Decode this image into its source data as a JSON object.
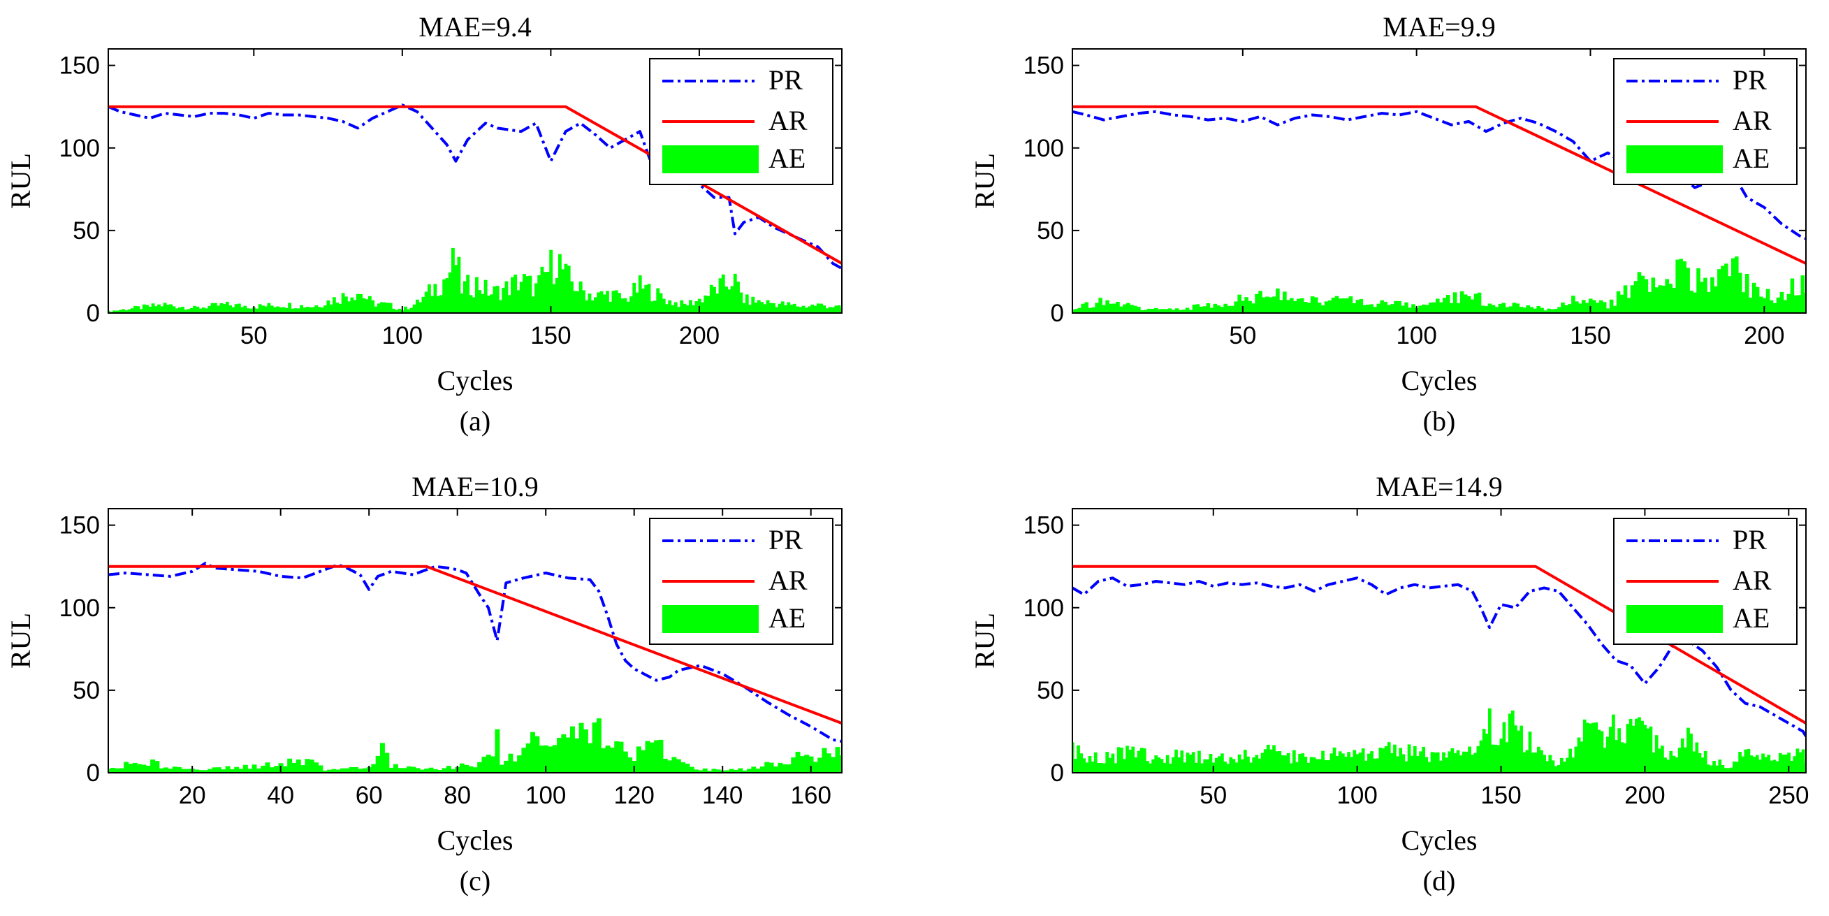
{
  "colors": {
    "predicted": "#0000ff",
    "actual": "#ff0000",
    "error": "#00ff00",
    "axis": "#000000",
    "background": "#ffffff"
  },
  "chart_data": [
    {
      "type": "line",
      "panel": "(a)",
      "title": "MAE=9.4",
      "xlabel": "Cycles",
      "ylabel": "RUL",
      "xlim": [
        1,
        248
      ],
      "ylim": [
        0,
        160
      ],
      "xticks": [
        50,
        100,
        150,
        200
      ],
      "yticks": [
        0,
        50,
        100,
        150
      ],
      "legend": [
        "PR",
        "AR",
        "AE"
      ],
      "series": [
        {
          "name": "PR",
          "style": "dash-dot",
          "x": [
            1,
            5,
            10,
            15,
            20,
            25,
            30,
            35,
            40,
            45,
            50,
            55,
            60,
            65,
            70,
            75,
            80,
            85,
            90,
            95,
            100,
            105,
            110,
            115,
            118,
            122,
            128,
            132,
            140,
            145,
            150,
            155,
            160,
            165,
            170,
            175,
            180,
            185,
            190,
            195,
            200,
            205,
            210,
            212,
            215,
            220,
            225,
            230,
            235,
            240,
            245,
            248
          ],
          "y": [
            125,
            122,
            120,
            118,
            121,
            120,
            119,
            121,
            121,
            120,
            118,
            121,
            120,
            120,
            119,
            118,
            116,
            112,
            118,
            122,
            126,
            122,
            112,
            102,
            92,
            105,
            115,
            112,
            110,
            115,
            92,
            110,
            115,
            108,
            100,
            105,
            110,
            85,
            90,
            88,
            78,
            70,
            70,
            48,
            55,
            58,
            52,
            48,
            44,
            40,
            30,
            27
          ]
        },
        {
          "name": "AR",
          "style": "solid",
          "x": [
            1,
            155,
            248
          ],
          "y": [
            125,
            125,
            30
          ]
        },
        {
          "name": "AE",
          "style": "bar",
          "x": [
            1,
            10,
            20,
            30,
            40,
            50,
            60,
            70,
            80,
            85,
            90,
            95,
            100,
            105,
            110,
            115,
            118,
            120,
            125,
            130,
            135,
            140,
            145,
            150,
            152,
            155,
            160,
            165,
            170,
            175,
            180,
            185,
            190,
            195,
            200,
            205,
            210,
            211,
            215,
            220,
            225,
            230,
            235,
            240,
            245,
            248
          ],
          "y": [
            1,
            3,
            5,
            3,
            5,
            4,
            5,
            4,
            10,
            13,
            6,
            5,
            2,
            6,
            14,
            22,
            32,
            15,
            18,
            12,
            15,
            20,
            15,
            28,
            34,
            22,
            14,
            10,
            12,
            8,
            16,
            12,
            7,
            5,
            8,
            14,
            18,
            22,
            8,
            7,
            6,
            5,
            4,
            5,
            4,
            3
          ]
        }
      ]
    },
    {
      "type": "line",
      "panel": "(b)",
      "title": "MAE=9.9",
      "xlabel": "Cycles",
      "ylabel": "RUL",
      "xlim": [
        1,
        212
      ],
      "ylim": [
        0,
        160
      ],
      "xticks": [
        50,
        100,
        150,
        200
      ],
      "yticks": [
        0,
        50,
        100,
        150
      ],
      "legend": [
        "PR",
        "AR",
        "AE"
      ],
      "series": [
        {
          "name": "PR",
          "style": "dash-dot",
          "x": [
            1,
            5,
            10,
            15,
            20,
            25,
            30,
            35,
            40,
            45,
            50,
            55,
            60,
            65,
            70,
            75,
            80,
            85,
            90,
            95,
            100,
            105,
            110,
            115,
            120,
            125,
            130,
            135,
            140,
            145,
            150,
            155,
            160,
            165,
            170,
            175,
            180,
            185,
            190,
            195,
            200,
            205,
            210,
            212
          ],
          "y": [
            122,
            120,
            117,
            119,
            121,
            122,
            120,
            119,
            117,
            118,
            116,
            119,
            114,
            118,
            120,
            119,
            117,
            119,
            121,
            120,
            122,
            118,
            114,
            116,
            110,
            115,
            118,
            115,
            110,
            104,
            92,
            97,
            90,
            82,
            90,
            85,
            76,
            80,
            88,
            70,
            64,
            54,
            47,
            45
          ]
        },
        {
          "name": "AR",
          "style": "solid",
          "x": [
            1,
            117,
            212
          ],
          "y": [
            125,
            125,
            30
          ]
        },
        {
          "name": "AE",
          "style": "bar",
          "x": [
            1,
            10,
            20,
            30,
            40,
            50,
            55,
            60,
            65,
            70,
            80,
            90,
            100,
            110,
            115,
            120,
            130,
            140,
            145,
            150,
            155,
            160,
            165,
            170,
            175,
            180,
            185,
            190,
            195,
            200,
            205,
            210,
            212
          ],
          "y": [
            3,
            7,
            3,
            2,
            5,
            8,
            11,
            12,
            6,
            8,
            9,
            6,
            4,
            8,
            14,
            6,
            4,
            2,
            8,
            10,
            5,
            12,
            20,
            16,
            25,
            20,
            15,
            28,
            18,
            12,
            10,
            18,
            16
          ]
        }
      ]
    },
    {
      "type": "line",
      "panel": "(c)",
      "title": "MAE=10.9",
      "xlabel": "Cycles",
      "ylabel": "RUL",
      "xlim": [
        1,
        167
      ],
      "ylim": [
        0,
        160
      ],
      "xticks": [
        20,
        40,
        60,
        80,
        100,
        120,
        140,
        160
      ],
      "yticks": [
        0,
        50,
        100,
        150
      ],
      "legend": [
        "PR",
        "AR",
        "AE"
      ],
      "series": [
        {
          "name": "PR",
          "style": "dash-dot",
          "x": [
            1,
            5,
            10,
            15,
            20,
            23,
            25,
            30,
            35,
            40,
            45,
            50,
            53,
            55,
            58,
            60,
            62,
            65,
            70,
            73,
            75,
            78,
            80,
            82,
            85,
            87,
            89,
            91,
            95,
            100,
            105,
            110,
            112,
            114,
            116,
            118,
            120,
            125,
            128,
            130,
            135,
            140,
            145,
            150,
            155,
            160,
            165,
            167
          ],
          "y": [
            120,
            121,
            120,
            119,
            122,
            127,
            124,
            123,
            122,
            119,
            118,
            123,
            126,
            124,
            120,
            111,
            119,
            122,
            120,
            123,
            125,
            124,
            123,
            121,
            108,
            100,
            80,
            115,
            118,
            121,
            118,
            117,
            110,
            95,
            78,
            68,
            63,
            56,
            58,
            62,
            65,
            60,
            52,
            43,
            35,
            28,
            20,
            19
          ]
        },
        {
          "name": "AR",
          "style": "solid",
          "x": [
            1,
            73,
            167
          ],
          "y": [
            125,
            125,
            30
          ]
        },
        {
          "name": "AE",
          "style": "bar",
          "x": [
            1,
            10,
            20,
            30,
            40,
            45,
            50,
            55,
            60,
            63,
            65,
            70,
            75,
            80,
            85,
            88,
            89,
            90,
            95,
            100,
            105,
            110,
            112,
            115,
            120,
            125,
            128,
            130,
            135,
            140,
            145,
            150,
            155,
            160,
            165,
            167
          ],
          "y": [
            4,
            6,
            2,
            3,
            5,
            8,
            2,
            2,
            4,
            13,
            5,
            3,
            2,
            4,
            6,
            12,
            27,
            5,
            15,
            23,
            26,
            28,
            25,
            15,
            12,
            16,
            12,
            6,
            2,
            2,
            2,
            5,
            8,
            10,
            11,
            11
          ]
        }
      ]
    },
    {
      "type": "line",
      "panel": "(d)",
      "title": "MAE=14.9",
      "xlabel": "Cycles",
      "ylabel": "RUL",
      "xlim": [
        1,
        256
      ],
      "ylim": [
        0,
        160
      ],
      "xticks": [
        50,
        100,
        150,
        200,
        250
      ],
      "yticks": [
        0,
        50,
        100,
        150
      ],
      "legend": [
        "PR",
        "AR",
        "AE"
      ],
      "series": [
        {
          "name": "PR",
          "style": "dash-dot",
          "x": [
            1,
            5,
            10,
            15,
            20,
            25,
            30,
            35,
            40,
            45,
            50,
            55,
            60,
            65,
            70,
            75,
            80,
            85,
            90,
            95,
            100,
            105,
            110,
            115,
            120,
            125,
            130,
            135,
            140,
            143,
            146,
            150,
            155,
            160,
            165,
            170,
            175,
            180,
            185,
            190,
            195,
            200,
            205,
            210,
            215,
            220,
            225,
            230,
            235,
            240,
            245,
            250,
            255,
            256
          ],
          "y": [
            112,
            108,
            116,
            118,
            113,
            114,
            116,
            115,
            114,
            116,
            113,
            115,
            114,
            115,
            113,
            112,
            114,
            110,
            114,
            116,
            118,
            114,
            108,
            112,
            114,
            112,
            113,
            114,
            110,
            100,
            88,
            102,
            100,
            110,
            112,
            110,
            100,
            90,
            78,
            68,
            65,
            54,
            64,
            78,
            80,
            74,
            64,
            50,
            42,
            40,
            35,
            30,
            25,
            22
          ]
        },
        {
          "name": "AR",
          "style": "solid",
          "x": [
            1,
            162,
            256
          ],
          "y": [
            125,
            125,
            30
          ]
        },
        {
          "name": "AE",
          "style": "bar",
          "x": [
            1,
            10,
            20,
            30,
            40,
            50,
            60,
            70,
            80,
            90,
            100,
            110,
            120,
            130,
            140,
            145,
            150,
            155,
            160,
            165,
            170,
            175,
            180,
            185,
            190,
            195,
            200,
            205,
            210,
            215,
            220,
            225,
            230,
            235,
            240,
            245,
            250,
            256
          ],
          "y": [
            13,
            8,
            12,
            9,
            11,
            8,
            10,
            12,
            9,
            11,
            10,
            14,
            12,
            10,
            13,
            35,
            24,
            28,
            18,
            10,
            6,
            12,
            25,
            22,
            30,
            34,
            26,
            14,
            8,
            23,
            10,
            6,
            4,
            14,
            10,
            8,
            12,
            10
          ]
        }
      ]
    }
  ]
}
